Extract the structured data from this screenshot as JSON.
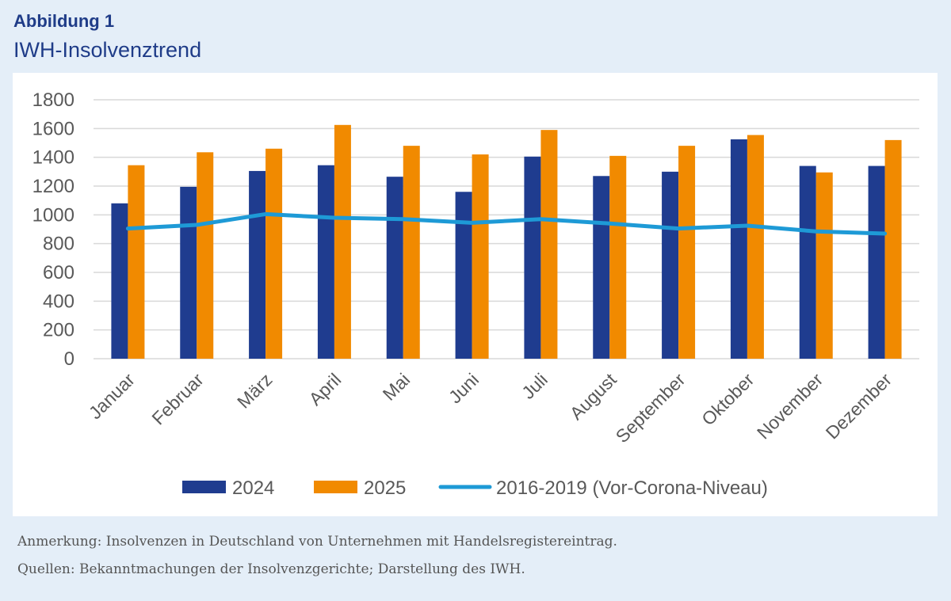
{
  "header": {
    "figure_label": "Abbildung 1",
    "title": "IWH-Insolvenztrend"
  },
  "notes": {
    "note": "Anmerkung: Insolvenzen in Deutschland von Unternehmen mit Handelsregistereintrag.",
    "source": "Quellen: Bekanntmachungen der Insolvenzgerichte; Darstellung des IWH."
  },
  "chart_data": {
    "type": "bar",
    "title": "IWH-Insolvenztrend",
    "ylim": [
      0,
      1800
    ],
    "yticks": [
      0,
      200,
      400,
      600,
      800,
      1000,
      1200,
      1400,
      1600,
      1800
    ],
    "grid": true,
    "legend_position": "bottom",
    "categories": [
      "Januar",
      "Februar",
      "März",
      "April",
      "Mai",
      "Juni",
      "Juli",
      "August",
      "September",
      "Oktober",
      "November",
      "Dezember"
    ],
    "series": [
      {
        "name": "2024",
        "type": "bar",
        "color": "#1f3c8f",
        "values": [
          1080,
          1195,
          1305,
          1345,
          1265,
          1160,
          1405,
          1270,
          1300,
          1525,
          1340,
          1340
        ]
      },
      {
        "name": "2025",
        "type": "bar",
        "color": "#f18a00",
        "values": [
          1345,
          1435,
          1460,
          1625,
          1480,
          1420,
          1590,
          1410,
          1480,
          1555,
          1295,
          1520
        ]
      },
      {
        "name": "2016-2019 (Vor-Corona-Niveau)",
        "type": "line",
        "color": "#1e9ad6",
        "values": [
          905,
          930,
          1005,
          980,
          970,
          945,
          970,
          940,
          905,
          925,
          885,
          870
        ]
      }
    ]
  }
}
